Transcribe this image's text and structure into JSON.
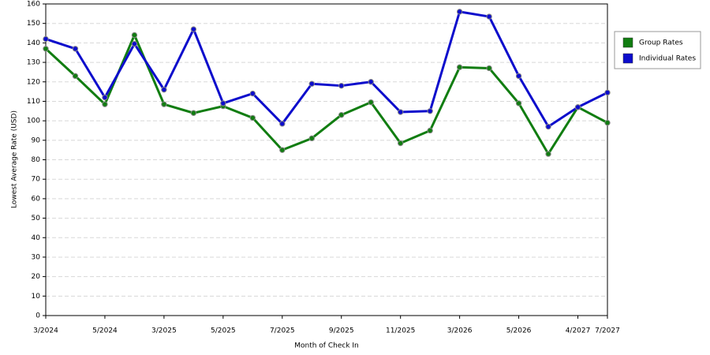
{
  "chart_data": {
    "type": "line",
    "x_label": "Month of Check In",
    "y_label": "Lowest Average Rate (USD)",
    "categories": [
      "3/2024",
      null,
      "5/2024",
      null,
      "3/2025",
      null,
      "5/2025",
      null,
      "7/2025",
      null,
      "9/2025",
      null,
      "11/2025",
      null,
      "3/2026",
      null,
      "5/2026",
      null,
      "4/2027",
      "7/2027"
    ],
    "series": [
      {
        "name": "Group Rates",
        "color": "#117d11",
        "values": [
          137,
          123,
          108.5,
          144,
          108.5,
          104,
          107.5,
          101.5,
          85,
          91,
          103,
          109.5,
          88.5,
          95,
          127.5,
          127,
          109,
          83,
          107,
          99
        ]
      },
      {
        "name": "Individual Rates",
        "color": "#0d0dcc",
        "values": [
          142,
          137,
          112,
          139.5,
          116,
          147,
          109,
          114,
          98.5,
          119,
          118,
          120,
          104.5,
          105,
          156,
          153.5,
          123,
          97,
          107,
          114.5
        ]
      }
    ],
    "ylim": [
      0,
      160
    ],
    "yticks": [
      0,
      10,
      20,
      30,
      40,
      50,
      60,
      70,
      80,
      90,
      100,
      110,
      120,
      130,
      140,
      150,
      160
    ],
    "grid": true,
    "legend": "right"
  }
}
